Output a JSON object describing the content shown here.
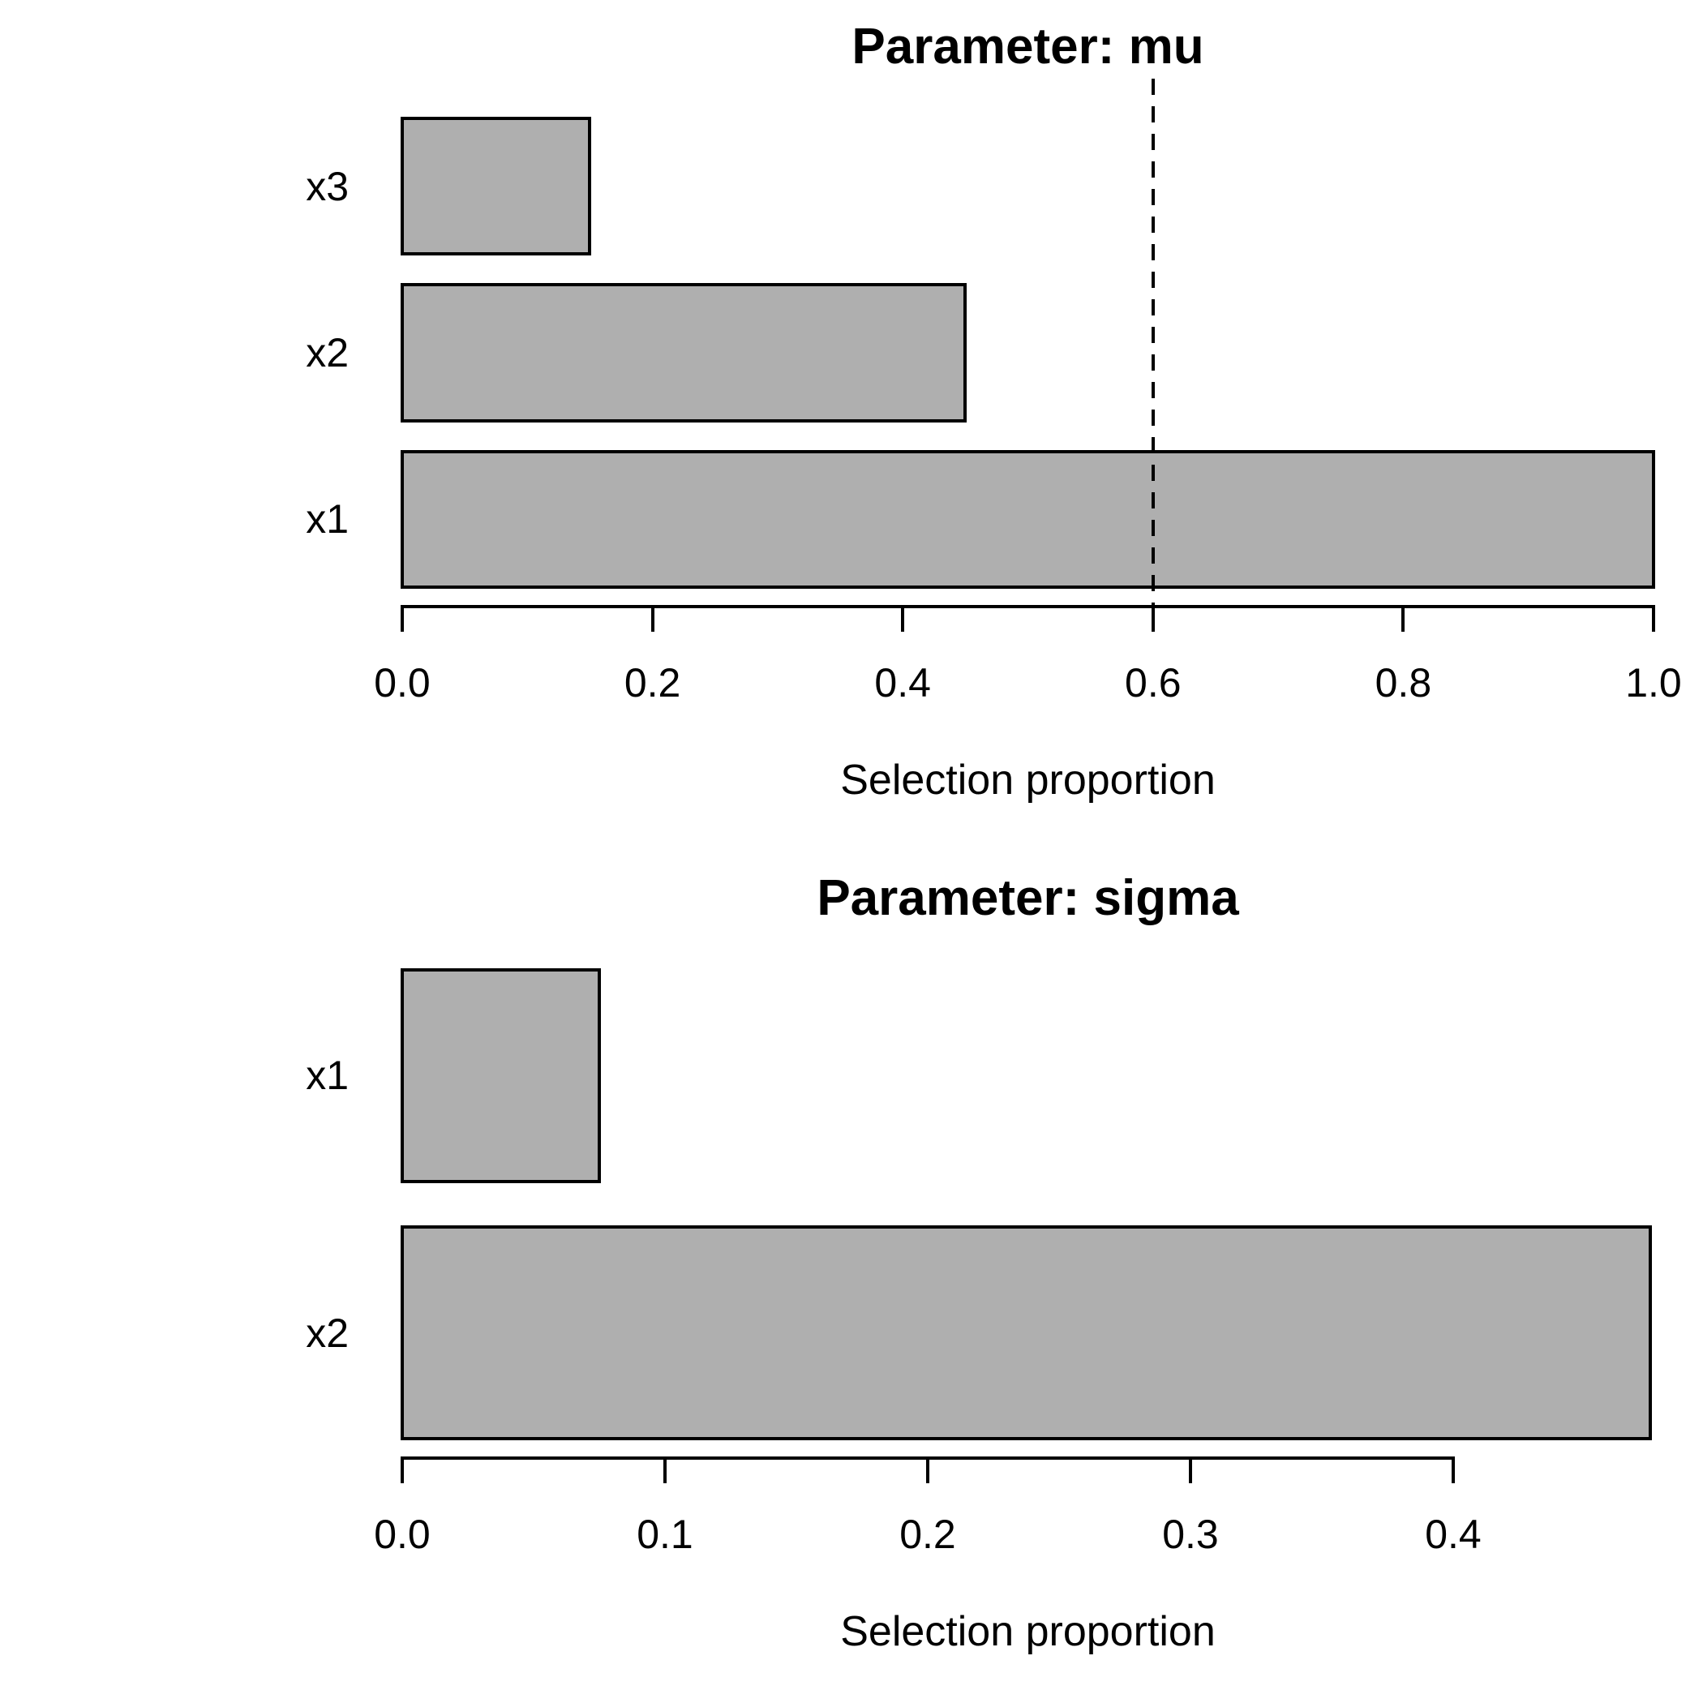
{
  "chart_data": [
    {
      "type": "bar",
      "orientation": "horizontal",
      "title": "Parameter: mu",
      "xlabel": "Selection proportion",
      "categories": [
        "x3",
        "x2",
        "x1"
      ],
      "values": [
        0.15,
        0.45,
        1.0
      ],
      "x_ticks": [
        0.0,
        0.2,
        0.4,
        0.6,
        0.8,
        1.0
      ],
      "x_tick_labels": [
        "0.0",
        "0.2",
        "0.4",
        "0.6",
        "0.8",
        "1.0"
      ],
      "xlim": [
        0,
        1.0
      ],
      "threshold_line": {
        "x": 0.6,
        "style": "dashed",
        "color": "#000000"
      },
      "grid": false,
      "legend": false,
      "bar_color": "#afafaf",
      "bar_border_color": "#000000"
    },
    {
      "type": "bar",
      "orientation": "horizontal",
      "title": "Parameter: sigma",
      "xlabel": "Selection proportion",
      "categories": [
        "x1",
        "x2"
      ],
      "values": [
        0.075,
        0.475
      ],
      "x_ticks": [
        0.0,
        0.1,
        0.2,
        0.3,
        0.4
      ],
      "x_tick_labels": [
        "0.0",
        "0.1",
        "0.2",
        "0.3",
        "0.4"
      ],
      "xlim": [
        0,
        0.475
      ],
      "threshold_line": null,
      "grid": false,
      "legend": false,
      "bar_color": "#afafaf",
      "bar_border_color": "#000000"
    }
  ]
}
